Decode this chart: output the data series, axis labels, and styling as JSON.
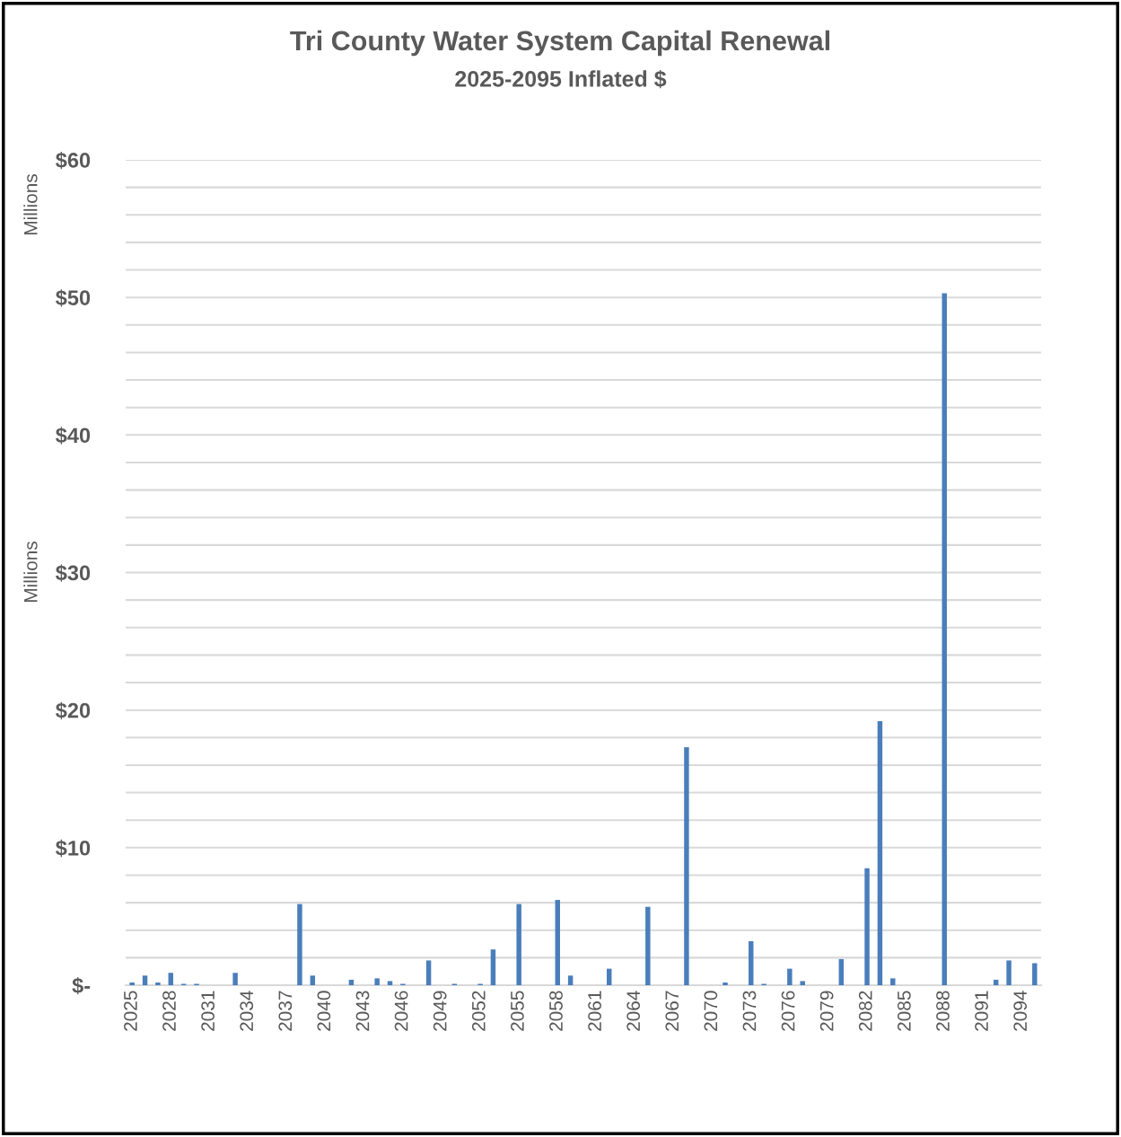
{
  "chart_data": {
    "type": "bar",
    "title": "Tri County Water System Capital Renewal",
    "subtitle": "2025-2095 Inflated $",
    "ylabel": "Millions",
    "annotations": [
      "Millions"
    ],
    "categories": [
      "2025",
      null,
      null,
      "2028",
      null,
      null,
      "2031",
      null,
      null,
      "2034",
      null,
      null,
      "2037",
      null,
      null,
      "2040",
      null,
      null,
      "2043",
      null,
      null,
      "2046",
      null,
      null,
      "2049",
      null,
      null,
      "2052",
      null,
      null,
      "2055",
      null,
      null,
      "2058",
      null,
      null,
      "2061",
      null,
      null,
      "2064",
      null,
      null,
      "2067",
      null,
      null,
      "2070",
      null,
      null,
      "2073",
      null,
      null,
      "2076",
      null,
      null,
      "2079",
      null,
      null,
      "2082",
      null,
      null,
      "2085",
      null,
      null,
      "2088",
      null,
      null,
      "2091",
      null,
      null,
      "2094",
      null
    ],
    "values": [
      0.2,
      0.7,
      0.2,
      0.9,
      0.1,
      0.1,
      0,
      0,
      0.9,
      0,
      0,
      0,
      0,
      5.9,
      0.7,
      0,
      0,
      0.4,
      0,
      0.5,
      0.3,
      0.1,
      0,
      1.8,
      0,
      0.1,
      0,
      0.1,
      2.6,
      0,
      5.9,
      0,
      0,
      6.2,
      0.7,
      0,
      0,
      1.2,
      0,
      0,
      5.7,
      0,
      0,
      17.3,
      0,
      0,
      0.2,
      0,
      3.2,
      0.1,
      0,
      1.2,
      0.3,
      0,
      0,
      1.9,
      0,
      8.5,
      19.2,
      0.5,
      0,
      0,
      0,
      50.3,
      0,
      0,
      0,
      0.4,
      1.8,
      0,
      1.6
    ],
    "color": "#4a7ebb",
    "ylim": [
      0,
      60
    ],
    "yticks": [
      {
        "value": 0,
        "label": "$-"
      },
      {
        "value": 2,
        "label": null
      },
      {
        "value": 4,
        "label": null
      },
      {
        "value": 6,
        "label": null
      },
      {
        "value": 8,
        "label": null
      },
      {
        "value": 10,
        "label": "$10"
      },
      {
        "value": 12,
        "label": null
      },
      {
        "value": 14,
        "label": null
      },
      {
        "value": 16,
        "label": null
      },
      {
        "value": 18,
        "label": null
      },
      {
        "value": 20,
        "label": "$20"
      },
      {
        "value": 22,
        "label": null
      },
      {
        "value": 24,
        "label": null
      },
      {
        "value": 26,
        "label": null
      },
      {
        "value": 28,
        "label": null
      },
      {
        "value": 30,
        "label": "$30"
      },
      {
        "value": 32,
        "label": null
      },
      {
        "value": 34,
        "label": null
      },
      {
        "value": 36,
        "label": null
      },
      {
        "value": 38,
        "label": null
      },
      {
        "value": 40,
        "label": "$40"
      },
      {
        "value": 42,
        "label": null
      },
      {
        "value": 44,
        "label": null
      },
      {
        "value": 46,
        "label": null
      },
      {
        "value": 48,
        "label": null
      },
      {
        "value": 50,
        "label": "$50"
      },
      {
        "value": 52,
        "label": null
      },
      {
        "value": 54,
        "label": null
      },
      {
        "value": 56,
        "label": null
      },
      {
        "value": 58,
        "label": null
      },
      {
        "value": 60,
        "label": "$60"
      }
    ],
    "grid": "y",
    "legend": false
  }
}
